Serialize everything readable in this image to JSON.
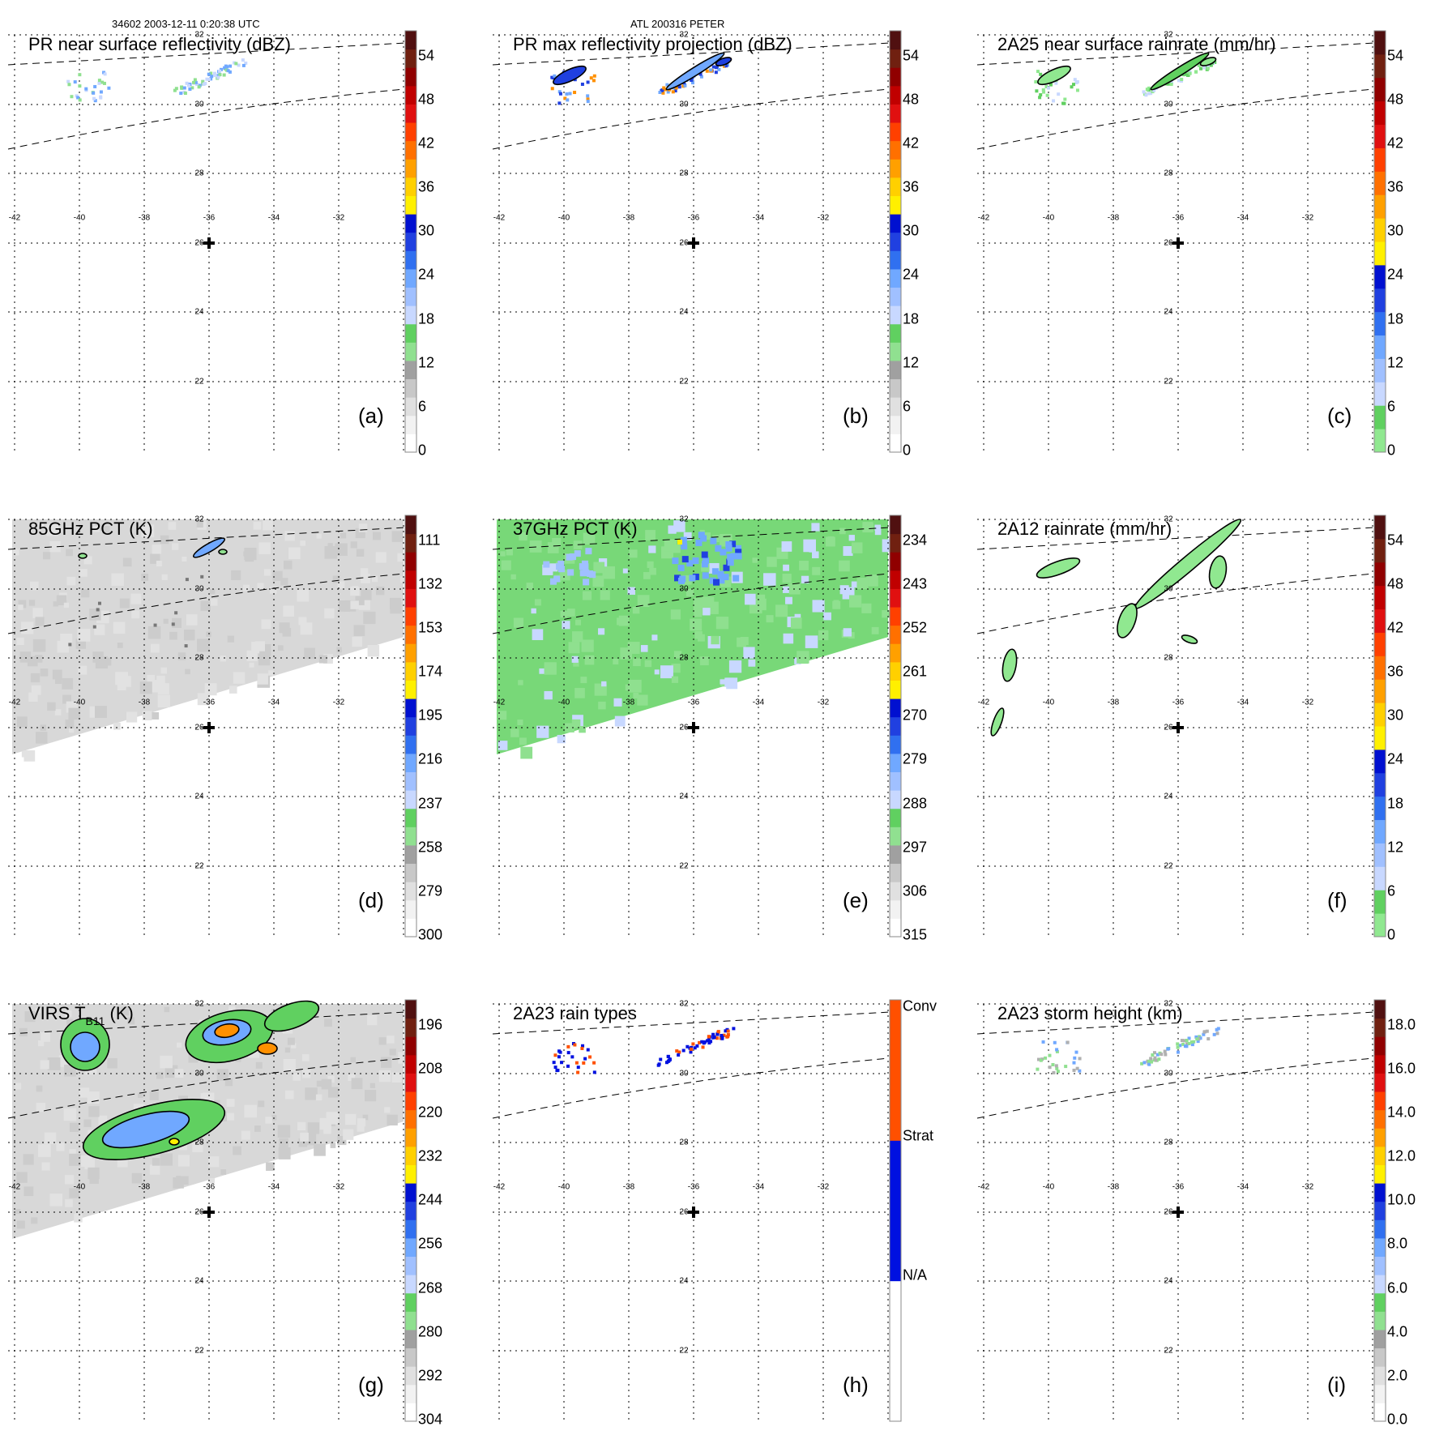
{
  "header": {
    "left": "34602 2003-12-11 0:20:38 UTC",
    "center": "ATL 200316 PETER"
  },
  "map": {
    "lon_labels": [
      "-42",
      "-40",
      "-38",
      "-36",
      "-34",
      "-32"
    ],
    "lat_labels": [
      "32",
      "30",
      "28",
      "26",
      "24",
      "22"
    ]
  },
  "panels": [
    {
      "id": "a",
      "label": "(a)",
      "title": "PR near surface reflectivity (dBZ)",
      "title_sub": "",
      "title_rest": "",
      "background": "none",
      "colorbar": [
        "0",
        "6",
        "12",
        "18",
        "24",
        "30",
        "36",
        "42",
        "48",
        "54"
      ],
      "colorbar_colors": [
        "#ffffff",
        "#f2f2f2",
        "#e0e0e0",
        "#c8c8c8",
        "#a0a0a0",
        "#90e090",
        "#60d060",
        "#c8d8ff",
        "#a0c0ff",
        "#70a8ff",
        "#3070f0",
        "#2040e0",
        "#0010d0",
        "#fff000",
        "#ffd000",
        "#ffa000",
        "#ff7000",
        "#ff4000",
        "#e01010",
        "#c00000",
        "#900000",
        "#702010",
        "#501010"
      ],
      "data_kind": "pr-near"
    },
    {
      "id": "b",
      "label": "(b)",
      "title": "PR max reflectivity projection (dBZ)",
      "title_sub": "",
      "title_rest": "",
      "background": "none",
      "colorbar": [
        "0",
        "6",
        "12",
        "18",
        "24",
        "30",
        "36",
        "42",
        "48",
        "54"
      ],
      "colorbar_colors": [
        "#ffffff",
        "#f2f2f2",
        "#e0e0e0",
        "#c8c8c8",
        "#a0a0a0",
        "#90e090",
        "#60d060",
        "#c8d8ff",
        "#a0c0ff",
        "#70a8ff",
        "#3070f0",
        "#2040e0",
        "#0010d0",
        "#fff000",
        "#ffd000",
        "#ffa000",
        "#ff7000",
        "#ff4000",
        "#e01010",
        "#c00000",
        "#900000",
        "#702010",
        "#501010"
      ],
      "data_kind": "pr-max"
    },
    {
      "id": "c",
      "label": "(c)",
      "title": "2A25 near surface rainrate (mm/hr)",
      "title_sub": "",
      "title_rest": "",
      "background": "none",
      "colorbar": [
        "0",
        "6",
        "12",
        "18",
        "24",
        "30",
        "36",
        "42",
        "48",
        "54"
      ],
      "colorbar_colors": [
        "#90e890",
        "#60d060",
        "#c8d8ff",
        "#a0c0ff",
        "#70a8ff",
        "#3070f0",
        "#2040e0",
        "#0010d0",
        "#fff000",
        "#ffd000",
        "#ffa000",
        "#ff7000",
        "#ff4000",
        "#e01010",
        "#c00000",
        "#900000",
        "#702010",
        "#501010"
      ],
      "data_kind": "rain25"
    },
    {
      "id": "d",
      "label": "(d)",
      "title": "85GHz PCT (K)",
      "title_sub": "",
      "title_rest": "",
      "background": "gray",
      "colorbar": [
        "300",
        "279",
        "258",
        "237",
        "216",
        "195",
        "174",
        "153",
        "132",
        "111"
      ],
      "colorbar_colors": [
        "#ffffff",
        "#f2f2f2",
        "#e0e0e0",
        "#c8c8c8",
        "#a0a0a0",
        "#90e090",
        "#60d060",
        "#c8d8ff",
        "#a0c0ff",
        "#70a8ff",
        "#3070f0",
        "#2040e0",
        "#0010d0",
        "#fff000",
        "#ffd000",
        "#ffa000",
        "#ff7000",
        "#ff4000",
        "#e01010",
        "#c00000",
        "#900000",
        "#702010",
        "#501010"
      ],
      "data_kind": "pct85"
    },
    {
      "id": "e",
      "label": "(e)",
      "title": "37GHz PCT (K)",
      "title_sub": "",
      "title_rest": "",
      "background": "green",
      "colorbar": [
        "315",
        "306",
        "297",
        "288",
        "279",
        "270",
        "261",
        "252",
        "243",
        "234"
      ],
      "colorbar_colors": [
        "#ffffff",
        "#f2f2f2",
        "#e0e0e0",
        "#c8c8c8",
        "#a0a0a0",
        "#90e090",
        "#60d060",
        "#c8d8ff",
        "#a0c0ff",
        "#70a8ff",
        "#3070f0",
        "#2040e0",
        "#0010d0",
        "#fff000",
        "#ffd000",
        "#ffa000",
        "#ff7000",
        "#ff4000",
        "#e01010",
        "#c00000",
        "#900000",
        "#702010",
        "#501010"
      ],
      "data_kind": "pct37"
    },
    {
      "id": "f",
      "label": "(f)",
      "title": "2A12 rainrate (mm/hr)",
      "title_sub": "",
      "title_rest": "",
      "background": "none",
      "colorbar": [
        "0",
        "6",
        "12",
        "18",
        "24",
        "30",
        "36",
        "42",
        "48",
        "54"
      ],
      "colorbar_colors": [
        "#90e890",
        "#60d060",
        "#c8d8ff",
        "#a0c0ff",
        "#70a8ff",
        "#3070f0",
        "#2040e0",
        "#0010d0",
        "#fff000",
        "#ffd000",
        "#ffa000",
        "#ff7000",
        "#ff4000",
        "#e01010",
        "#c00000",
        "#900000",
        "#702010",
        "#501010"
      ],
      "data_kind": "rain12"
    },
    {
      "id": "g",
      "label": "(g)",
      "title": "VIRS T",
      "title_sub": "B11",
      "title_rest": " (K)",
      "background": "gray",
      "colorbar": [
        "304",
        "292",
        "280",
        "268",
        "256",
        "244",
        "232",
        "220",
        "208",
        "196"
      ],
      "colorbar_colors": [
        "#ffffff",
        "#f2f2f2",
        "#e0e0e0",
        "#c8c8c8",
        "#a0a0a0",
        "#90e090",
        "#60d060",
        "#c8d8ff",
        "#a0c0ff",
        "#70a8ff",
        "#3070f0",
        "#2040e0",
        "#0010d0",
        "#fff000",
        "#ffd000",
        "#ffa000",
        "#ff7000",
        "#ff4000",
        "#e01010",
        "#c00000",
        "#900000",
        "#702010",
        "#501010"
      ],
      "data_kind": "virs"
    },
    {
      "id": "h",
      "label": "(h)",
      "title": "2A23 rain types",
      "title_sub": "",
      "title_rest": "",
      "background": "none",
      "colorbar": [
        "N/A",
        "Strat",
        "Conv"
      ],
      "colorbar_colors": [
        "#ffffff",
        "#0010e0",
        "#ff5000"
      ],
      "data_kind": "raintype"
    },
    {
      "id": "i",
      "label": "(i)",
      "title": "2A23 storm height (km)",
      "title_sub": "",
      "title_rest": "",
      "background": "none",
      "colorbar": [
        "0.0",
        "2.0",
        "4.0",
        "6.0",
        "8.0",
        "10.0",
        "12.0",
        "14.0",
        "16.0",
        "18.0"
      ],
      "colorbar_colors": [
        "#ffffff",
        "#f2f2f2",
        "#e0e0e0",
        "#c8c8c8",
        "#a0a0a0",
        "#90e090",
        "#60d060",
        "#c8d8ff",
        "#a0c0ff",
        "#70a8ff",
        "#3070f0",
        "#2040e0",
        "#0010d0",
        "#fff000",
        "#ffd000",
        "#ffa000",
        "#ff7000",
        "#ff4000",
        "#e01010",
        "#c00000",
        "#900000",
        "#702010",
        "#501010"
      ],
      "data_kind": "height"
    }
  ]
}
